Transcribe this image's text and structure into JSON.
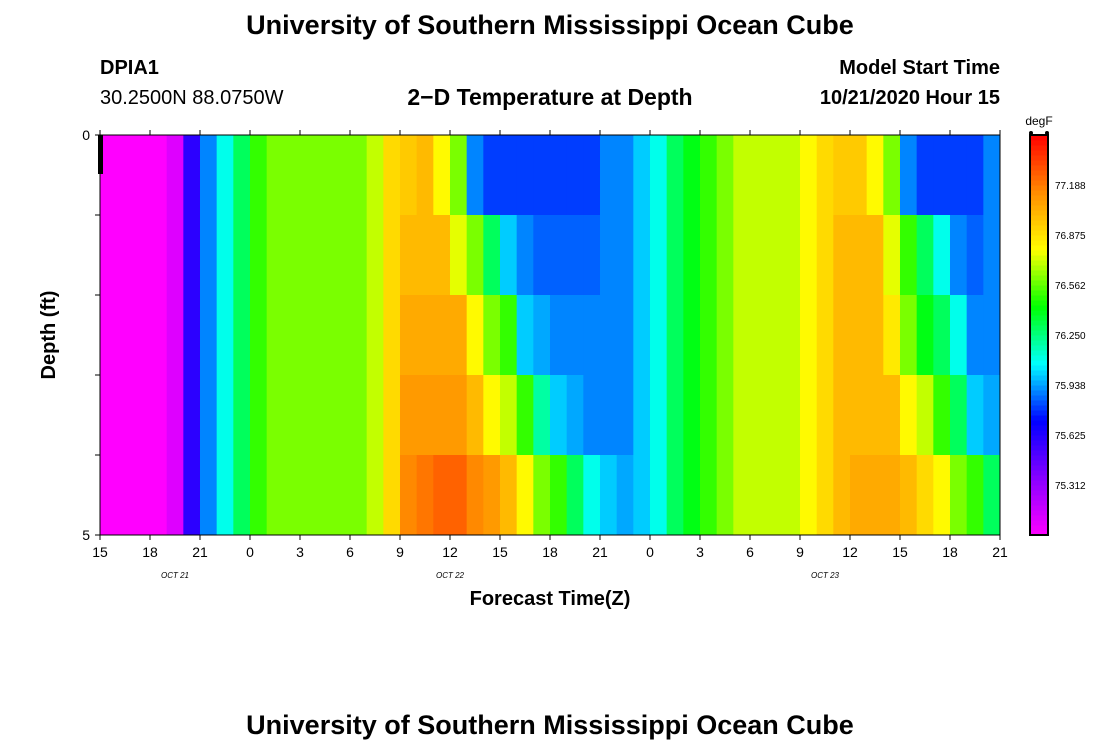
{
  "page": {
    "title": "University of Southern Mississippi Ocean Cube",
    "footer_title": "University of Southern Mississippi Ocean Cube"
  },
  "header": {
    "station": "DPIA1",
    "coords": "30.2500N 88.0750W",
    "subtitle": "2−D Temperature at Depth",
    "start_label": "Model Start Time",
    "start_value": "10/21/2020 Hour 15"
  },
  "chart_data": {
    "type": "heatmap",
    "title": "2−D Temperature at Depth",
    "xlabel": "Forecast Time(Z)",
    "ylabel": "Depth (ft)",
    "x_range_hours": [
      0,
      54
    ],
    "x_tick_labels": [
      "15",
      "18",
      "21",
      "0",
      "3",
      "6",
      "9",
      "12",
      "15",
      "18",
      "21",
      "0",
      "3",
      "6",
      "9",
      "12",
      "15",
      "18",
      "21"
    ],
    "date_labels": [
      {
        "text": "OCT 21",
        "hour": 4.5
      },
      {
        "text": "OCT 22",
        "hour": 21
      },
      {
        "text": "OCT 23",
        "hour": 43.5
      }
    ],
    "y_range": [
      0,
      5
    ],
    "y_tick_labels": [
      "0",
      "5"
    ],
    "colorbar": {
      "unit": "degF",
      "min": 75.0,
      "max": 77.5,
      "labels": [
        "77.188",
        "76.875",
        "76.562",
        "76.250",
        "75.938",
        "75.625",
        "75.312"
      ],
      "colors": [
        "#ff00ff",
        "#8800ff",
        "#0000ff",
        "#00ffff",
        "#00ff00",
        "#ffff00",
        "#ff8c00",
        "#ff0000"
      ]
    },
    "depth_layers": [
      0.25,
      0.75,
      1.25,
      1.75,
      2.25,
      2.75,
      3.25,
      3.75,
      4.25,
      4.75
    ],
    "time_step_hours": 1,
    "temperature_degF": [
      [
        75.0,
        75.0,
        75.0,
        75.0,
        75.1,
        75.6,
        75.9,
        76.1,
        76.3,
        76.5,
        76.6,
        76.6,
        76.6,
        76.6,
        76.6,
        76.6,
        76.7,
        76.9,
        76.95,
        77.0,
        76.8,
        76.6,
        75.9,
        75.8,
        75.8,
        75.8,
        75.8,
        75.8,
        75.8,
        75.8,
        75.9,
        75.9,
        76.0,
        76.1,
        76.3,
        76.4,
        76.5,
        76.6,
        76.7,
        76.7,
        76.7,
        76.7,
        76.8,
        76.9,
        76.95,
        76.95,
        76.8,
        76.6,
        75.9,
        75.8,
        75.8,
        75.8,
        75.8,
        75.9,
        76.0
      ],
      [
        75.0,
        75.0,
        75.0,
        75.0,
        75.1,
        75.6,
        75.9,
        76.1,
        76.3,
        76.5,
        76.6,
        76.6,
        76.6,
        76.6,
        76.6,
        76.6,
        76.7,
        76.9,
        76.95,
        77.0,
        76.8,
        76.6,
        75.9,
        75.8,
        75.8,
        75.8,
        75.8,
        75.8,
        75.8,
        75.8,
        75.9,
        75.9,
        76.0,
        76.1,
        76.3,
        76.4,
        76.5,
        76.6,
        76.7,
        76.7,
        76.7,
        76.7,
        76.8,
        76.9,
        76.95,
        76.95,
        76.8,
        76.6,
        75.9,
        75.8,
        75.8,
        75.8,
        75.8,
        75.9,
        76.0
      ],
      [
        75.0,
        75.0,
        75.0,
        75.0,
        75.1,
        75.6,
        75.9,
        76.1,
        76.3,
        76.5,
        76.6,
        76.6,
        76.6,
        76.6,
        76.6,
        76.6,
        76.7,
        76.9,
        77.0,
        77.0,
        77.0,
        76.75,
        76.6,
        76.3,
        76.0,
        75.9,
        75.85,
        75.85,
        75.85,
        75.85,
        75.9,
        75.9,
        76.0,
        76.1,
        76.3,
        76.4,
        76.5,
        76.6,
        76.7,
        76.7,
        76.7,
        76.7,
        76.8,
        76.9,
        77.0,
        77.0,
        77.0,
        76.75,
        76.5,
        76.3,
        76.1,
        75.9,
        75.85,
        75.9,
        76.0
      ],
      [
        75.0,
        75.0,
        75.0,
        75.0,
        75.1,
        75.6,
        75.9,
        76.1,
        76.3,
        76.5,
        76.6,
        76.6,
        76.6,
        76.6,
        76.6,
        76.6,
        76.7,
        76.9,
        77.0,
        77.0,
        77.0,
        76.75,
        76.6,
        76.3,
        76.0,
        75.9,
        75.85,
        75.85,
        75.85,
        75.85,
        75.9,
        75.9,
        76.0,
        76.1,
        76.3,
        76.4,
        76.5,
        76.6,
        76.7,
        76.7,
        76.7,
        76.7,
        76.8,
        76.9,
        77.0,
        77.0,
        77.0,
        76.75,
        76.5,
        76.3,
        76.1,
        75.9,
        75.85,
        75.9,
        76.0
      ],
      [
        75.0,
        75.0,
        75.0,
        75.0,
        75.1,
        75.6,
        75.9,
        76.1,
        76.3,
        76.5,
        76.6,
        76.6,
        76.6,
        76.6,
        76.6,
        76.6,
        76.7,
        76.9,
        77.05,
        77.05,
        77.05,
        77.05,
        76.8,
        76.6,
        76.5,
        76.0,
        75.95,
        75.9,
        75.9,
        75.9,
        75.9,
        75.9,
        76.0,
        76.1,
        76.3,
        76.4,
        76.5,
        76.6,
        76.7,
        76.7,
        76.7,
        76.7,
        76.8,
        76.9,
        77.0,
        77.0,
        77.0,
        76.85,
        76.6,
        76.4,
        76.3,
        76.1,
        75.9,
        75.9,
        76.0
      ],
      [
        75.0,
        75.0,
        75.0,
        75.0,
        75.1,
        75.6,
        75.9,
        76.1,
        76.3,
        76.5,
        76.6,
        76.6,
        76.6,
        76.6,
        76.6,
        76.6,
        76.7,
        76.9,
        77.05,
        77.05,
        77.05,
        77.05,
        76.8,
        76.6,
        76.5,
        76.0,
        75.95,
        75.9,
        75.9,
        75.9,
        75.9,
        75.9,
        76.0,
        76.1,
        76.3,
        76.4,
        76.5,
        76.6,
        76.7,
        76.7,
        76.7,
        76.7,
        76.8,
        76.9,
        77.0,
        77.0,
        77.0,
        76.85,
        76.6,
        76.4,
        76.3,
        76.1,
        75.9,
        75.9,
        76.0
      ],
      [
        75.0,
        75.0,
        75.0,
        75.0,
        75.1,
        75.6,
        75.9,
        76.1,
        76.3,
        76.5,
        76.6,
        76.6,
        76.6,
        76.6,
        76.6,
        76.6,
        76.7,
        76.9,
        77.1,
        77.1,
        77.1,
        77.1,
        77.0,
        76.8,
        76.7,
        76.5,
        76.2,
        76.0,
        75.95,
        75.9,
        75.9,
        75.9,
        76.0,
        76.1,
        76.3,
        76.4,
        76.5,
        76.6,
        76.7,
        76.7,
        76.7,
        76.7,
        76.8,
        76.9,
        77.0,
        77.0,
        77.0,
        77.0,
        76.8,
        76.7,
        76.5,
        76.3,
        76.0,
        75.95,
        76.0
      ],
      [
        75.0,
        75.0,
        75.0,
        75.0,
        75.1,
        75.6,
        75.9,
        76.1,
        76.3,
        76.5,
        76.6,
        76.6,
        76.6,
        76.6,
        76.6,
        76.6,
        76.7,
        76.9,
        77.1,
        77.1,
        77.1,
        77.1,
        77.0,
        76.8,
        76.7,
        76.5,
        76.2,
        76.0,
        75.95,
        75.9,
        75.9,
        75.9,
        76.0,
        76.1,
        76.3,
        76.4,
        76.5,
        76.6,
        76.7,
        76.7,
        76.7,
        76.7,
        76.8,
        76.9,
        77.0,
        77.0,
        77.0,
        77.0,
        76.8,
        76.7,
        76.5,
        76.3,
        76.0,
        75.95,
        76.0
      ],
      [
        75.0,
        75.0,
        75.0,
        75.0,
        75.1,
        75.6,
        75.9,
        76.1,
        76.3,
        76.5,
        76.6,
        76.6,
        76.6,
        76.6,
        76.6,
        76.6,
        76.7,
        76.9,
        77.15,
        77.2,
        77.25,
        77.25,
        77.15,
        77.1,
        77.0,
        76.8,
        76.6,
        76.5,
        76.3,
        76.1,
        76.0,
        75.95,
        76.0,
        76.1,
        76.3,
        76.4,
        76.5,
        76.6,
        76.7,
        76.7,
        76.7,
        76.7,
        76.8,
        76.9,
        77.0,
        77.05,
        77.05,
        77.05,
        77.0,
        76.9,
        76.8,
        76.6,
        76.5,
        76.3,
        76.1
      ],
      [
        75.0,
        75.0,
        75.0,
        75.0,
        75.1,
        75.6,
        75.9,
        76.1,
        76.3,
        76.5,
        76.6,
        76.6,
        76.6,
        76.6,
        76.6,
        76.6,
        76.7,
        76.9,
        77.15,
        77.2,
        77.25,
        77.25,
        77.15,
        77.1,
        77.0,
        76.8,
        76.6,
        76.5,
        76.3,
        76.1,
        76.0,
        75.95,
        76.0,
        76.1,
        76.3,
        76.4,
        76.5,
        76.6,
        76.7,
        76.7,
        76.7,
        76.7,
        76.8,
        76.9,
        77.0,
        77.05,
        77.05,
        77.05,
        77.0,
        76.9,
        76.8,
        76.6,
        76.5,
        76.3,
        76.1
      ]
    ]
  }
}
